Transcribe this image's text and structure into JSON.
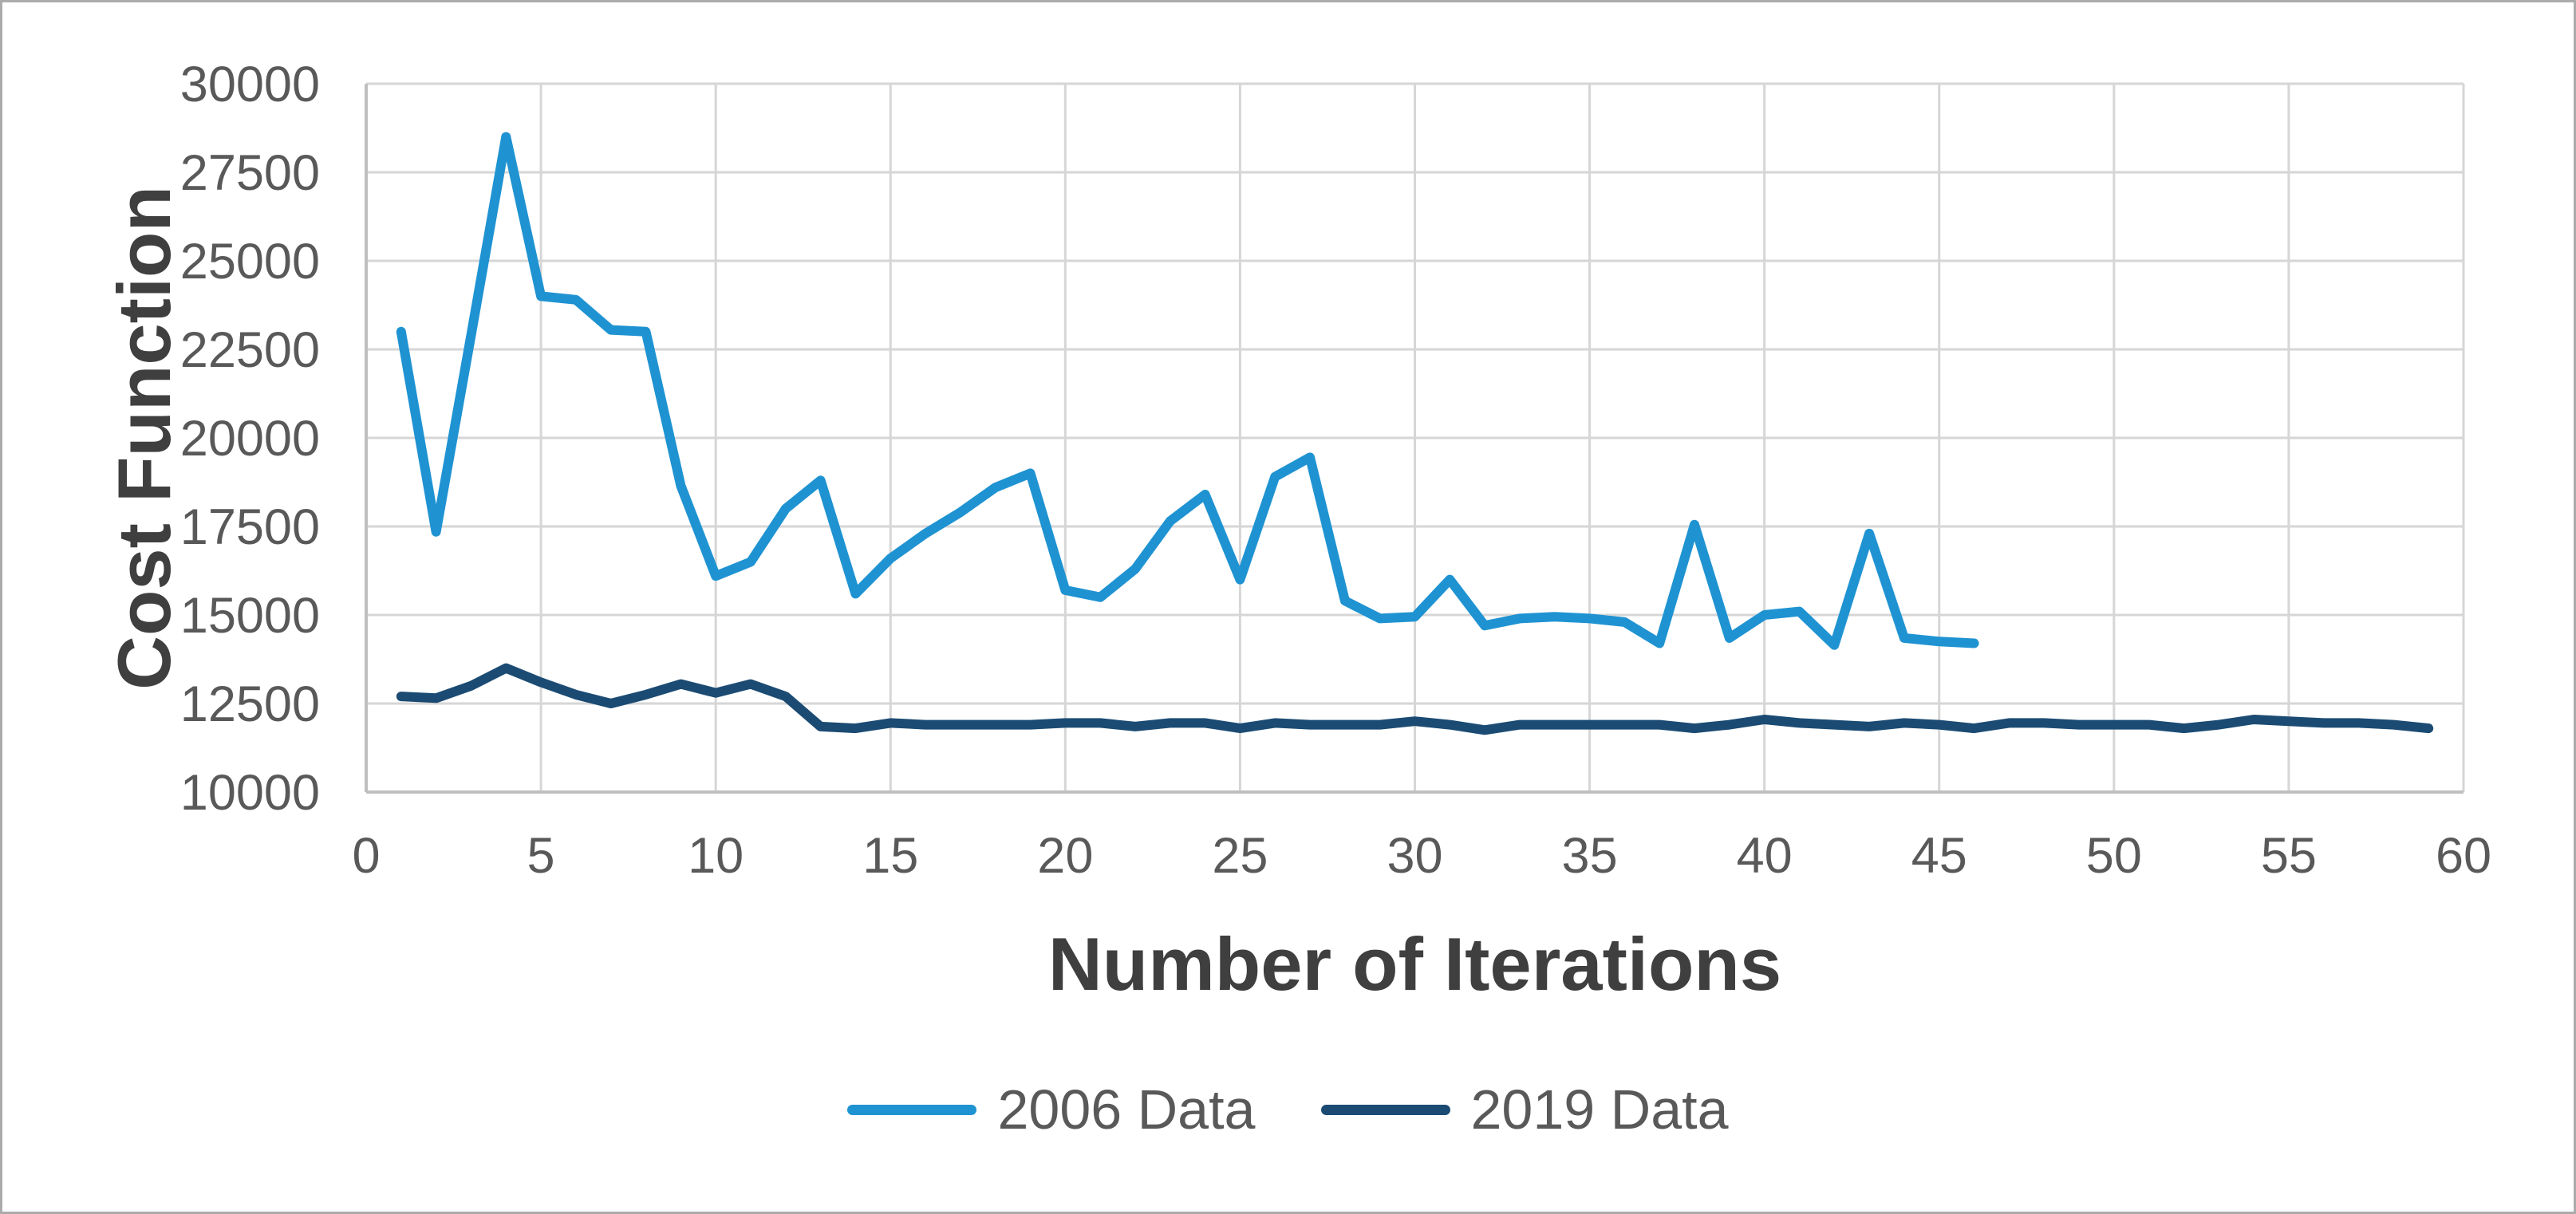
{
  "chart_data": {
    "type": "line",
    "title": "",
    "xlabel": "Number of Iterations",
    "ylabel": "Cost Function",
    "xlim": [
      0,
      60
    ],
    "ylim": [
      10000,
      30000
    ],
    "x_ticks": [
      0,
      5,
      10,
      15,
      20,
      25,
      30,
      35,
      40,
      45,
      50,
      55,
      60
    ],
    "y_ticks": [
      10000,
      12500,
      15000,
      17500,
      20000,
      22500,
      25000,
      27500,
      30000
    ],
    "grid": true,
    "legend_position": "bottom-center",
    "series": [
      {
        "name": "2006 Data",
        "color": "#1f93d2",
        "x_start": 1,
        "values": [
          23000,
          17350,
          22900,
          28500,
          24000,
          23900,
          23050,
          23000,
          18650,
          16100,
          16500,
          18000,
          18800,
          15600,
          16600,
          17300,
          17900,
          18600,
          19000,
          15700,
          15500,
          16300,
          17650,
          18400,
          16000,
          18900,
          19450,
          15400,
          14900,
          14950,
          16000,
          14700,
          14900,
          14950,
          14900,
          14800,
          14200,
          17550,
          14350,
          15000,
          15100,
          14150,
          17300,
          14350,
          14250,
          14200
        ]
      },
      {
        "name": "2019 Data",
        "color": "#1b4b73",
        "x_start": 1,
        "values": [
          12700,
          12650,
          13000,
          13500,
          13100,
          12750,
          12500,
          12750,
          13050,
          12800,
          13050,
          12700,
          11850,
          11800,
          11950,
          11900,
          11900,
          11900,
          11900,
          11950,
          11950,
          11850,
          11950,
          11950,
          11800,
          11950,
          11900,
          11900,
          11900,
          12000,
          11900,
          11750,
          11900,
          11900,
          11900,
          11900,
          11900,
          11800,
          11900,
          12050,
          11950,
          11900,
          11850,
          11950,
          11900,
          11800,
          11950,
          11950,
          11900,
          11900,
          11900,
          11800,
          11900,
          12050,
          12000,
          11950,
          11950,
          11900,
          11800
        ]
      }
    ]
  },
  "colors": {
    "background": "#ffffff",
    "outer_border": "#ababab",
    "gridline": "#d6d6d6",
    "axis_line": "#bfbfbf",
    "tick_text": "#595959",
    "axis_title_text": "#3f3f3f",
    "legend_text": "#595959"
  }
}
